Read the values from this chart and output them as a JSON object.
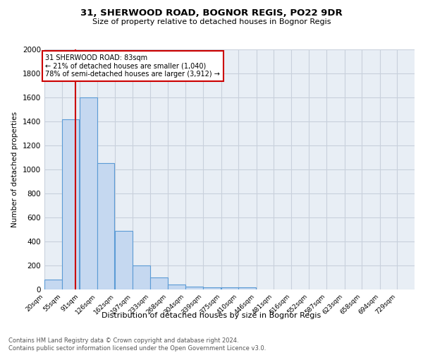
{
  "title": "31, SHERWOOD ROAD, BOGNOR REGIS, PO22 9DR",
  "subtitle": "Size of property relative to detached houses in Bognor Regis",
  "xlabel": "Distribution of detached houses by size in Bognor Regis",
  "ylabel": "Number of detached properties",
  "bar_labels": [
    "20sqm",
    "55sqm",
    "91sqm",
    "126sqm",
    "162sqm",
    "197sqm",
    "233sqm",
    "268sqm",
    "304sqm",
    "339sqm",
    "375sqm",
    "410sqm",
    "446sqm",
    "481sqm",
    "516sqm",
    "552sqm",
    "587sqm",
    "623sqm",
    "658sqm",
    "694sqm",
    "729sqm"
  ],
  "bar_values": [
    80,
    1420,
    1600,
    1050,
    490,
    200,
    100,
    40,
    25,
    20,
    15,
    15,
    0,
    0,
    0,
    0,
    0,
    0,
    0,
    0,
    0
  ],
  "bar_color": "#c5d8f0",
  "bar_edge_color": "#5b9bd5",
  "marker_x": 83,
  "marker_label": "31 SHERWOOD ROAD: 83sqm",
  "annotation_line1": "← 21% of detached houses are smaller (1,040)",
  "annotation_line2": "78% of semi-detached houses are larger (3,912) →",
  "red_line_color": "#cc0000",
  "annotation_box_color": "#ffffff",
  "annotation_box_edge": "#cc0000",
  "ylim": [
    0,
    2000
  ],
  "yticks": [
    0,
    200,
    400,
    600,
    800,
    1000,
    1200,
    1400,
    1600,
    1800,
    2000
  ],
  "grid_color": "#c8d0dc",
  "bg_color": "#e8eef5",
  "footer_line1": "Contains HM Land Registry data © Crown copyright and database right 2024.",
  "footer_line2": "Contains public sector information licensed under the Open Government Licence v3.0.",
  "bin_width": 35,
  "xlim_min": 20,
  "xlim_max": 764
}
